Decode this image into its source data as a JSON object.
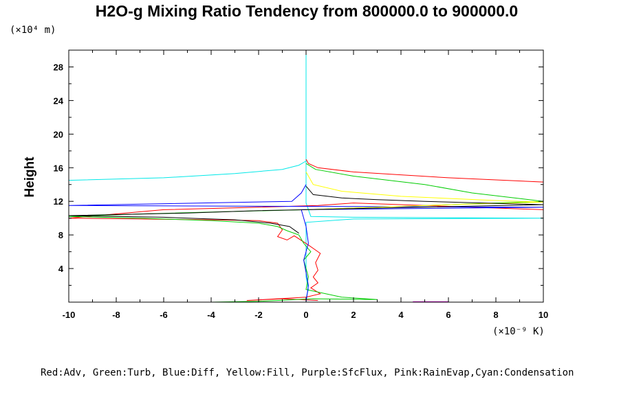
{
  "chart_data": {
    "type": "line",
    "title": "H2O-g Mixing Ratio Tendency from 800000.0 to 900000.0",
    "ylabel": "Height",
    "y_unit": "(×10⁴ m)",
    "x_unit": "(×10⁻⁹ K)",
    "xlim": [
      -10,
      10
    ],
    "ylim": [
      0,
      30
    ],
    "x_ticks": [
      "-10",
      "-8",
      "-6",
      "-4",
      "-2",
      "0",
      "2",
      "4",
      "6",
      "8",
      "10"
    ],
    "y_ticks": [
      "4",
      "8",
      "12",
      "16",
      "20",
      "24",
      "28"
    ],
    "legend_text": "Red:Adv, Green:Turb, Blue:Diff, Yellow:Fill, Purple:SfcFlux, Pink:RainEvap,Cyan:Condensation",
    "grid": false,
    "series": [
      {
        "color": "#00e8e8",
        "x": [
          -10,
          -6,
          -3,
          -1,
          -0.3,
          0,
          0,
          0,
          0,
          0,
          0.2,
          2,
          6,
          10,
          2,
          0,
          0,
          0,
          0,
          0,
          0.1,
          0,
          0
        ],
        "y": [
          14.5,
          14.8,
          15.3,
          15.8,
          16.3,
          16.8,
          30,
          16.8,
          12,
          11.8,
          10.2,
          10.1,
          10.05,
          10.0,
          9.9,
          9.5,
          7.5,
          6,
          4.5,
          3,
          1.5,
          0.5,
          0
        ]
      },
      {
        "color": "#ff0000",
        "x": [
          0,
          0.1,
          0.5,
          2,
          6,
          10,
          10,
          2,
          0.5,
          -2,
          -6,
          -10,
          -10,
          -7,
          -4,
          -2,
          -1.2,
          -1,
          -1.2,
          -0.8,
          -0.5,
          0.1,
          0.6,
          0.4,
          0.5,
          0.3,
          0.5,
          0.2,
          0.6,
          0,
          -2.5,
          -1,
          0.5
        ],
        "y": [
          17.0,
          16.5,
          16.0,
          15.5,
          14.8,
          14.3,
          11.0,
          11.8,
          11.5,
          11.3,
          11.0,
          10.0,
          10.0,
          9.9,
          9.8,
          9.7,
          9.4,
          8.6,
          7.8,
          7.4,
          7.9,
          6.8,
          5.8,
          4.7,
          3.8,
          3.0,
          2.3,
          1.7,
          1.0,
          0.6,
          0.2,
          0.4,
          0.2
        ]
      },
      {
        "color": "#00cc00",
        "x": [
          0,
          0.4,
          2,
          5,
          7,
          10,
          10,
          6,
          2,
          0,
          -3,
          -7,
          -10,
          -7,
          -4,
          -2,
          -1.2,
          -0.8,
          -0.3,
          -0.1,
          0.2,
          -0.1,
          0.1,
          0,
          1.5,
          3,
          0.3,
          -2,
          -4
        ],
        "y": [
          16.5,
          15.8,
          15.0,
          14.0,
          13.0,
          12.0,
          12.0,
          11.6,
          11.2,
          11.0,
          10.8,
          10.5,
          10.2,
          10.0,
          9.7,
          9.4,
          9.0,
          8.5,
          8.0,
          7.0,
          6.0,
          5.0,
          3.0,
          1.5,
          0.6,
          0.3,
          0.4,
          0.1,
          0.0
        ]
      },
      {
        "color": "#0000ff",
        "x": [
          0,
          -0.2,
          -0.6,
          -10,
          10,
          -0.2,
          0,
          0.1,
          -0.1,
          0.1,
          0
        ],
        "y": [
          14.0,
          13.0,
          12.0,
          11.5,
          11.3,
          11.0,
          9.0,
          7.0,
          5.0,
          2.0,
          0.0
        ]
      },
      {
        "color": "#ffff00",
        "x": [
          0,
          0.3,
          1.5,
          4,
          8,
          10,
          6,
          2,
          0
        ],
        "y": [
          15.5,
          14.0,
          13.2,
          12.6,
          12.1,
          11.9,
          11.6,
          11.2,
          11.0
        ]
      },
      {
        "color": "#000000",
        "x": [
          0,
          0.3,
          1.5,
          3,
          5,
          10,
          3,
          0,
          -2,
          -5,
          -10,
          -6,
          -3,
          -1.5,
          -0.7,
          -0.5,
          -0.3
        ],
        "y": [
          13.8,
          12.8,
          12.4,
          12.2,
          12.0,
          11.6,
          11.2,
          11.0,
          10.9,
          10.6,
          10.3,
          10.1,
          9.8,
          9.4,
          9.0,
          8.6,
          8.2
        ]
      },
      {
        "color": "#cc00cc",
        "x": [
          4.5,
          6.0
        ],
        "y": [
          0.05,
          0.05
        ]
      }
    ]
  }
}
